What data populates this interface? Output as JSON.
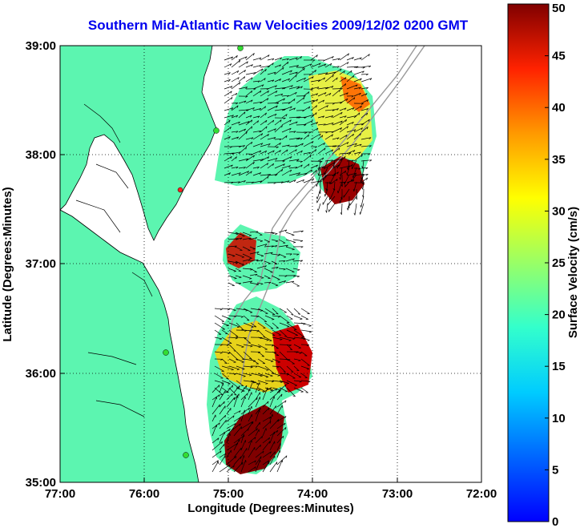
{
  "title": "Southern Mid-Atlantic Raw Velocities 2009/12/02 0200 GMT",
  "axes": {
    "xlabel": "Longitude (Degrees:Minutes)",
    "ylabel": "Latitude (Degrees:Minutes)",
    "x_ticks": [
      "77:00",
      "76:00",
      "75:00",
      "74:00",
      "73:00",
      "72:00"
    ],
    "y_ticks": [
      "39:00",
      "38:00",
      "37:00",
      "36:00",
      "35:00"
    ],
    "xlim": [
      -77,
      -72
    ],
    "ylim": [
      35,
      39
    ],
    "grid": true
  },
  "colorbar": {
    "label": "Surface Velocity (cm/s)",
    "ticks": [
      "50",
      "45",
      "40",
      "35",
      "30",
      "25",
      "20",
      "15",
      "10",
      "5",
      "0"
    ],
    "range": [
      0,
      50
    ],
    "colormap": "jet"
  },
  "colors": {
    "land": "#5cf5b0",
    "title": "#0000ee",
    "arrows": "#000000",
    "bathymetry": "#999999"
  }
}
